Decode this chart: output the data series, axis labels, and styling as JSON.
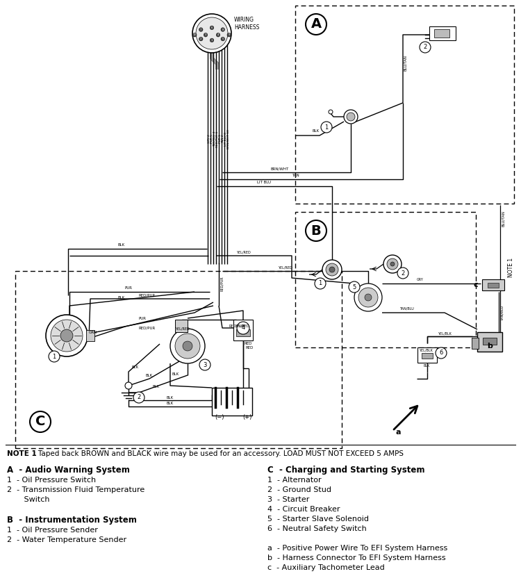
{
  "bg_color": "#ffffff",
  "fig_width": 7.5,
  "fig_height": 8.39,
  "note1_bold": "NOTE 1",
  "note1_rest": ": Taped back BROWN and BLACK wire may be used for an accessory. LOAD MUST NOT EXCEED 5 AMPS",
  "legend_A_title": "A  - Audio Warning System",
  "legend_A_items": [
    "1  - Oil Pressure Switch",
    "2  - Transmission Fluid Temperature",
    "       Switch"
  ],
  "legend_B_title": "B  - Instrumentation System",
  "legend_B_items": [
    "1  - Oil Pressure Sender",
    "2  - Water Temperature Sender"
  ],
  "legend_C_title": "C  - Charging and Starting System",
  "legend_C_items": [
    "1  - Alternator",
    "2  - Ground Stud",
    "3  - Starter",
    "4  - Circuit Breaker",
    "5  - Starter Slave Solenoid",
    "6  - Neutral Safety Switch"
  ],
  "legend_abc_items": [
    "a  - Positive Power Wire To EFI System Harness",
    "b  - Harness Connector To EFI System Harness",
    "c  - Auxiliary Tachometer Lead"
  ],
  "wiring_harness_label": "WIRING\nHARNESS",
  "color_black": "#000000",
  "color_dark": "#1a1a1a",
  "color_gray": "#888888",
  "color_lgray": "#cccccc",
  "color_dgray": "#555555"
}
